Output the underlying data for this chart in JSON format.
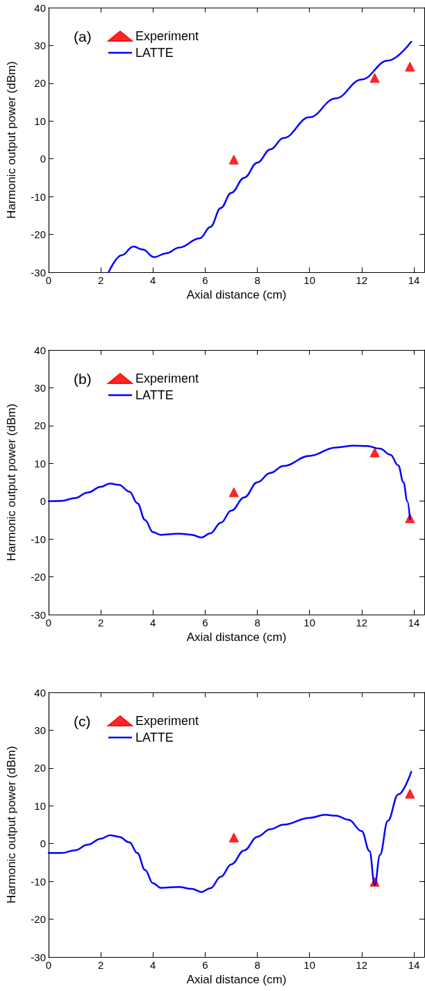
{
  "chart_data": [
    {
      "type": "line",
      "xlabel": "Axial distance (cm)",
      "ylabel": "Harmonic output power (dBm)",
      "annotations": [
        "(a)"
      ],
      "xlim": [
        0,
        14.4
      ],
      "xticks": [
        0,
        2,
        4,
        6,
        8,
        10,
        12,
        14
      ],
      "ylim": [
        -30,
        40
      ],
      "yticks": [
        -30,
        -20,
        -10,
        0,
        10,
        20,
        30,
        40
      ],
      "grid": false,
      "legend": "top left",
      "series": [
        {
          "name": "Experiment",
          "type": "scatter",
          "marker": "triangle",
          "color": "#ff0000",
          "x": [
            7.1,
            12.5,
            13.85
          ],
          "values": [
            -0.2,
            21.4,
            24.4
          ]
        },
        {
          "name": "LATTE",
          "marker": "none",
          "line_style": "solid",
          "color": "#0000ff",
          "x": [
            2.3,
            2.8,
            3.25,
            3.6,
            4.05,
            4.5,
            5,
            5.8,
            6.2,
            6.6,
            7,
            7.5,
            8,
            8.5,
            9,
            10,
            11,
            12,
            13,
            13.9
          ],
          "values": [
            -30,
            -25.5,
            -23.2,
            -24,
            -26,
            -25,
            -23.5,
            -21,
            -18,
            -13,
            -9,
            -5,
            -1,
            2.5,
            5.5,
            11,
            16,
            21,
            26,
            31
          ]
        }
      ]
    },
    {
      "type": "line",
      "xlabel": "Axial distance (cm)",
      "ylabel": "Harmonic output power (dBm)",
      "annotations": [
        "(b)"
      ],
      "xlim": [
        0,
        14.4
      ],
      "xticks": [
        0,
        2,
        4,
        6,
        8,
        10,
        12,
        14
      ],
      "ylim": [
        -30,
        40
      ],
      "yticks": [
        -30,
        -20,
        -10,
        0,
        10,
        20,
        30,
        40
      ],
      "grid": false,
      "legend": "top left",
      "series": [
        {
          "name": "Experiment",
          "type": "scatter",
          "marker": "triangle",
          "color": "#ff0000",
          "x": [
            7.1,
            12.5,
            13.85
          ],
          "values": [
            2.4,
            12.9,
            -4.5
          ]
        },
        {
          "name": "LATTE",
          "marker": "none",
          "line_style": "solid",
          "color": "#0000ff",
          "x": [
            0,
            0.5,
            1,
            1.5,
            2,
            2.35,
            2.7,
            3.1,
            3.4,
            3.7,
            4,
            4.3,
            5,
            5.5,
            5.85,
            6.2,
            6.6,
            7,
            7.5,
            8,
            8.5,
            9,
            10,
            11,
            11.7,
            12.2,
            12.7,
            13.1,
            13.4,
            13.6,
            13.75,
            13.85
          ],
          "values": [
            0,
            0.1,
            0.8,
            2.3,
            3.8,
            4.7,
            4.3,
            2.5,
            -0.5,
            -5,
            -8.2,
            -8.9,
            -8.6,
            -8.9,
            -9.6,
            -8.5,
            -5.7,
            -2.5,
            1,
            5,
            7.5,
            9.3,
            12,
            14.2,
            14.7,
            14.6,
            13.9,
            12.3,
            9.5,
            5,
            0,
            -4.8
          ]
        }
      ]
    },
    {
      "type": "line",
      "xlabel": "Axial distance (cm)",
      "ylabel": "Harmonic output power (dBm)",
      "annotations": [
        "(c)"
      ],
      "xlim": [
        0,
        14.4
      ],
      "xticks": [
        0,
        2,
        4,
        6,
        8,
        10,
        12,
        14
      ],
      "ylim": [
        -30,
        40
      ],
      "yticks": [
        -30,
        -20,
        -10,
        0,
        10,
        20,
        30,
        40
      ],
      "grid": false,
      "legend": "top left",
      "series": [
        {
          "name": "Experiment",
          "type": "scatter",
          "marker": "triangle",
          "color": "#ff0000",
          "x": [
            7.1,
            12.5,
            13.85
          ],
          "values": [
            1.6,
            -10.1,
            13.2
          ]
        },
        {
          "name": "LATTE",
          "marker": "none",
          "line_style": "solid",
          "color": "#0000ff",
          "x": [
            0,
            0.5,
            1,
            1.5,
            2,
            2.35,
            2.7,
            3.1,
            3.4,
            3.7,
            4,
            4.3,
            5,
            5.5,
            5.85,
            6.2,
            6.6,
            7,
            7.5,
            8,
            8.5,
            9,
            10,
            10.6,
            11,
            11.5,
            12,
            12.3,
            12.5,
            12.7,
            13,
            13.4,
            13.9
          ],
          "values": [
            -2.5,
            -2.5,
            -1.8,
            -0.3,
            1.3,
            2.2,
            1.8,
            0.3,
            -2.5,
            -7,
            -10.5,
            -11.7,
            -11.5,
            -12,
            -12.8,
            -11.8,
            -8.8,
            -5.5,
            -1.8,
            1.8,
            3.8,
            5,
            6.8,
            7.6,
            7.4,
            6.3,
            3.3,
            -2,
            -11,
            -3,
            6,
            13,
            19
          ]
        }
      ]
    }
  ]
}
